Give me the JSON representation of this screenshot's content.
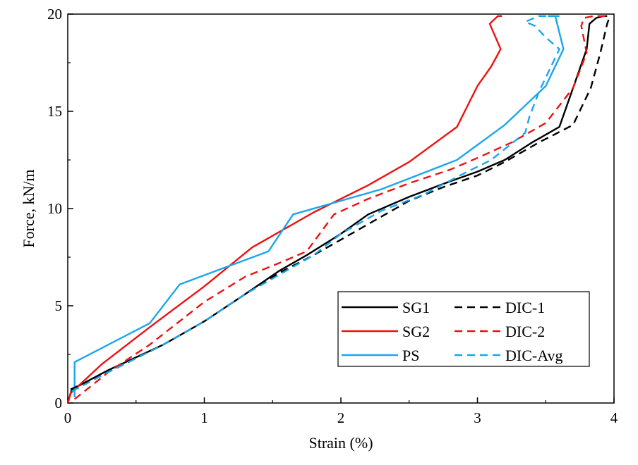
{
  "chart_data": {
    "type": "line",
    "title": "",
    "xlabel": "Strain (%)",
    "ylabel": "Force, kN/m",
    "xlim": [
      0,
      4
    ],
    "ylim": [
      0,
      20
    ],
    "xticks": [
      "0",
      "1",
      "2",
      "3",
      "4"
    ],
    "yticks": [
      "0",
      "5",
      "10",
      "15",
      "20"
    ],
    "grid": false,
    "legend_position": "lower-right",
    "series": [
      {
        "name": "SG1",
        "color": "#000000",
        "dash": "solid",
        "x": [
          0.0,
          0.03,
          0.3,
          0.7,
          1.0,
          1.3,
          1.55,
          1.75,
          2.0,
          2.2,
          2.5,
          2.8,
          3.0,
          3.2,
          3.4,
          3.6,
          3.7,
          3.8,
          3.82,
          3.87,
          3.92,
          3.95
        ],
        "y": [
          0.0,
          0.7,
          1.7,
          3.0,
          4.2,
          5.6,
          6.8,
          7.6,
          8.7,
          9.7,
          10.6,
          11.4,
          11.9,
          12.5,
          13.4,
          14.2,
          16.2,
          18.2,
          19.5,
          19.8,
          19.9,
          19.9
        ]
      },
      {
        "name": "SG2",
        "color": "#ee1111",
        "dash": "solid",
        "x": [
          0.0,
          0.02,
          0.25,
          0.6,
          1.0,
          1.35,
          1.6,
          1.8,
          2.0,
          2.2,
          2.5,
          2.85,
          3.0,
          3.1,
          3.17,
          3.09,
          3.15,
          3.18
        ],
        "y": [
          0.0,
          0.5,
          2.0,
          3.9,
          6.0,
          8.0,
          9.0,
          9.8,
          10.5,
          11.2,
          12.4,
          14.2,
          16.3,
          17.3,
          18.2,
          19.5,
          19.9,
          19.9
        ]
      },
      {
        "name": "PS",
        "color": "#1aa6ee",
        "dash": "solid",
        "x": [
          0.05,
          0.05,
          0.6,
          0.82,
          1.47,
          1.65,
          2.0,
          2.3,
          2.85,
          3.2,
          3.5,
          3.63,
          3.57,
          3.52,
          3.57,
          3.6
        ],
        "y": [
          0.3,
          2.1,
          4.1,
          6.1,
          7.8,
          9.7,
          10.4,
          11.0,
          12.5,
          14.3,
          16.3,
          18.2,
          19.9,
          19.9,
          19.9,
          19.9
        ]
      },
      {
        "name": "DIC-1",
        "color": "#000000",
        "dash": "dashed",
        "x": [
          0.02,
          0.3,
          0.7,
          1.0,
          1.3,
          1.55,
          1.8,
          2.0,
          2.25,
          2.5,
          2.75,
          3.0,
          3.2,
          3.45,
          3.7,
          3.83,
          3.9,
          3.95,
          3.97
        ],
        "y": [
          0.7,
          1.6,
          3.0,
          4.2,
          5.6,
          6.7,
          7.6,
          8.4,
          9.4,
          10.4,
          11.1,
          11.7,
          12.4,
          13.4,
          14.3,
          16.2,
          18.0,
          19.5,
          19.9
        ]
      },
      {
        "name": "DIC-2",
        "color": "#ee1111",
        "dash": "dashed",
        "x": [
          0.05,
          0.3,
          0.6,
          1.0,
          1.3,
          1.55,
          1.75,
          1.95,
          2.2,
          2.5,
          2.8,
          3.0,
          3.25,
          3.5,
          3.7,
          3.8,
          3.76,
          3.78,
          3.85,
          3.95
        ],
        "y": [
          0.2,
          1.6,
          3.0,
          5.2,
          6.5,
          7.2,
          7.8,
          9.7,
          10.5,
          11.3,
          12.0,
          12.6,
          13.4,
          14.4,
          16.2,
          18.0,
          19.4,
          19.8,
          19.9,
          19.9
        ]
      },
      {
        "name": "DIC-Avg",
        "color": "#1aa6ee",
        "dash": "dashed",
        "x": [
          0.03,
          0.3,
          0.7,
          1.0,
          1.3,
          1.6,
          1.8,
          2.0,
          2.3,
          2.6,
          2.9,
          3.1,
          3.35,
          3.38,
          3.45,
          3.6,
          3.5,
          3.42,
          3.35,
          3.45,
          3.58
        ],
        "y": [
          0.6,
          1.6,
          3.0,
          4.2,
          5.6,
          6.8,
          7.6,
          8.7,
          9.9,
          10.7,
          11.8,
          12.5,
          13.9,
          14.7,
          16.0,
          18.2,
          18.8,
          19.4,
          19.6,
          19.9,
          19.9
        ]
      }
    ]
  }
}
